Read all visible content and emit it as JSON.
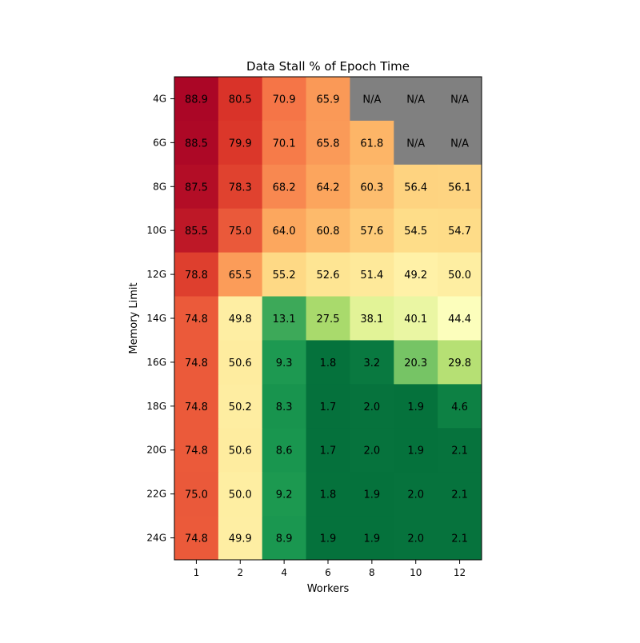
{
  "chart_data": {
    "type": "heatmap",
    "title": "Data Stall % of Epoch Time",
    "xlabel": "Workers",
    "ylabel": "Memory Limit",
    "x_categories": [
      "1",
      "2",
      "4",
      "6",
      "8",
      "10",
      "12"
    ],
    "y_categories": [
      "4G",
      "6G",
      "8G",
      "10G",
      "12G",
      "14G",
      "16G",
      "18G",
      "20G",
      "22G",
      "24G"
    ],
    "values": [
      [
        88.9,
        80.5,
        70.9,
        65.9,
        null,
        null,
        null
      ],
      [
        88.5,
        79.9,
        70.1,
        65.8,
        61.8,
        null,
        null
      ],
      [
        87.5,
        78.3,
        68.2,
        64.2,
        60.3,
        56.4,
        56.1
      ],
      [
        85.5,
        75.0,
        64.0,
        60.8,
        57.6,
        54.5,
        54.7
      ],
      [
        78.8,
        65.5,
        55.2,
        52.6,
        51.4,
        49.2,
        50.0
      ],
      [
        74.8,
        49.8,
        13.1,
        27.5,
        38.1,
        40.1,
        44.4
      ],
      [
        74.8,
        50.6,
        9.3,
        1.8,
        3.2,
        20.3,
        29.8
      ],
      [
        74.8,
        50.2,
        8.3,
        1.7,
        2.0,
        1.9,
        4.6
      ],
      [
        74.8,
        50.6,
        8.6,
        1.7,
        2.0,
        1.9,
        2.1
      ],
      [
        75.0,
        50.0,
        9.2,
        1.8,
        1.9,
        2.0,
        2.1
      ],
      [
        74.8,
        49.9,
        8.9,
        1.9,
        1.9,
        2.0,
        2.1
      ]
    ],
    "missing_label": "N/A",
    "missing_color": "#808080",
    "value_format_decimals": 1,
    "colormap": "RdYlGn_r",
    "color_range": [
      0,
      90
    ],
    "grid": false,
    "legend": false
  }
}
